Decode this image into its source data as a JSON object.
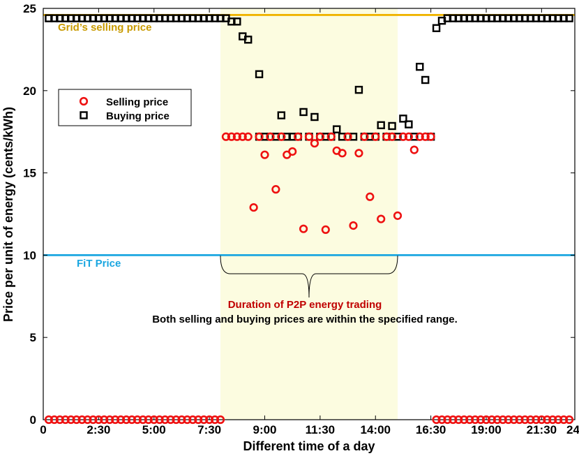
{
  "chart_data": {
    "type": "scatter",
    "xlabel": "Different time of a day",
    "ylabel": "Price per unit of energy (cents/kWh)",
    "xlim": [
      0,
      24
    ],
    "ylim": [
      0,
      25
    ],
    "x_ticks": [
      0,
      2.5,
      5,
      7.5,
      10,
      12.5,
      15,
      17.5,
      20,
      22.5,
      25
    ],
    "x_tick_labels": [
      "0",
      "2:30",
      "5:00",
      "7:30",
      "9:00",
      "11:30",
      "14:00",
      "16:30",
      "19:00",
      "21:30",
      "24:00"
    ],
    "y_ticks": [
      0,
      5,
      10,
      15,
      20,
      25
    ],
    "y_tick_labels": [
      "0",
      "5",
      "10",
      "15",
      "20",
      "25"
    ],
    "grid": false,
    "legend": {
      "position": "upper-left",
      "entries": [
        {
          "label": "Selling price",
          "marker": "circle",
          "color": "#ee1111"
        },
        {
          "label": "Buying price",
          "marker": "square",
          "color": "#000000"
        }
      ]
    },
    "reference_lines": [
      {
        "name": "Grid's selling price",
        "y": 24.6,
        "color": "#f0b400"
      },
      {
        "name": "FiT Price",
        "y": 10,
        "color": "#1aa6e0"
      }
    ],
    "shaded_region": {
      "x_start": 8,
      "x_end": 16,
      "color": "#fcfce0",
      "label": "Duration of P2P energy trading"
    },
    "annotations": {
      "duration_label": "Duration of P2P energy trading",
      "range_note": "Both selling and buying prices are within the specified range.",
      "grid_price_label": "Grid’s selling price",
      "fit_price_label": "FiT Price"
    },
    "colors": {
      "selling": "#ee1111",
      "buying": "#000000",
      "grid_line": "#f0b400",
      "fit_line": "#1aa6e0",
      "duration_text": "#c00000"
    },
    "series": [
      {
        "name": "Selling price",
        "marker": "circle",
        "points": [
          [
            0.25,
            0
          ],
          [
            0.5,
            0
          ],
          [
            0.75,
            0
          ],
          [
            1,
            0
          ],
          [
            1.25,
            0
          ],
          [
            1.5,
            0
          ],
          [
            1.75,
            0
          ],
          [
            2,
            0
          ],
          [
            2.25,
            0
          ],
          [
            2.5,
            0
          ],
          [
            2.75,
            0
          ],
          [
            3,
            0
          ],
          [
            3.25,
            0
          ],
          [
            3.5,
            0
          ],
          [
            3.75,
            0
          ],
          [
            4,
            0
          ],
          [
            4.25,
            0
          ],
          [
            4.5,
            0
          ],
          [
            4.75,
            0
          ],
          [
            5,
            0
          ],
          [
            5.25,
            0
          ],
          [
            5.5,
            0
          ],
          [
            5.75,
            0
          ],
          [
            6,
            0
          ],
          [
            6.25,
            0
          ],
          [
            6.5,
            0
          ],
          [
            6.75,
            0
          ],
          [
            7,
            0
          ],
          [
            7.25,
            0
          ],
          [
            7.5,
            0
          ],
          [
            7.75,
            0
          ],
          [
            8,
            0
          ],
          [
            8.25,
            17.2
          ],
          [
            8.5,
            17.2
          ],
          [
            8.75,
            17.2
          ],
          [
            9,
            17.2
          ],
          [
            9.25,
            17.2
          ],
          [
            9.5,
            12.9
          ],
          [
            9.75,
            17.2
          ],
          [
            10,
            16.1
          ],
          [
            10.25,
            17.2
          ],
          [
            10.5,
            14
          ],
          [
            10.75,
            17.2
          ],
          [
            11,
            16.1
          ],
          [
            11.25,
            16.3
          ],
          [
            11.5,
            17.2
          ],
          [
            11.75,
            11.6
          ],
          [
            12,
            17.2
          ],
          [
            12.25,
            16.8
          ],
          [
            12.5,
            17.2
          ],
          [
            12.75,
            11.55
          ],
          [
            13,
            17.2
          ],
          [
            13.25,
            16.35
          ],
          [
            13.5,
            16.2
          ],
          [
            13.75,
            17.2
          ],
          [
            14,
            11.8
          ],
          [
            14.25,
            16.2
          ],
          [
            14.5,
            17.2
          ],
          [
            14.75,
            13.55
          ],
          [
            15,
            17.2
          ],
          [
            15.25,
            12.2
          ],
          [
            15.5,
            17.2
          ],
          [
            15.75,
            17.2
          ],
          [
            16,
            12.4
          ],
          [
            16.25,
            17.2
          ],
          [
            16.5,
            17.2
          ],
          [
            16.75,
            16.4
          ],
          [
            17,
            17.2
          ],
          [
            17.25,
            17.2
          ],
          [
            17.5,
            17.2
          ],
          [
            17.75,
            0
          ],
          [
            18,
            0
          ],
          [
            18.25,
            0
          ],
          [
            18.5,
            0
          ],
          [
            18.75,
            0
          ],
          [
            19,
            0
          ],
          [
            19.25,
            0
          ],
          [
            19.5,
            0
          ],
          [
            19.75,
            0
          ],
          [
            20,
            0
          ],
          [
            20.25,
            0
          ],
          [
            20.5,
            0
          ],
          [
            20.75,
            0
          ],
          [
            21,
            0
          ],
          [
            21.25,
            0
          ],
          [
            21.5,
            0
          ],
          [
            21.75,
            0
          ],
          [
            22,
            0
          ],
          [
            22.25,
            0
          ],
          [
            22.5,
            0
          ],
          [
            22.75,
            0
          ],
          [
            23,
            0
          ],
          [
            23.25,
            0
          ],
          [
            23.5,
            0
          ],
          [
            23.75,
            0
          ]
        ]
      },
      {
        "name": "Buying price",
        "marker": "square",
        "points": [
          [
            0.25,
            24.4
          ],
          [
            0.5,
            24.4
          ],
          [
            0.75,
            24.4
          ],
          [
            1,
            24.4
          ],
          [
            1.25,
            24.4
          ],
          [
            1.5,
            24.4
          ],
          [
            1.75,
            24.4
          ],
          [
            2,
            24.4
          ],
          [
            2.25,
            24.4
          ],
          [
            2.5,
            24.4
          ],
          [
            2.75,
            24.4
          ],
          [
            3,
            24.4
          ],
          [
            3.25,
            24.4
          ],
          [
            3.5,
            24.4
          ],
          [
            3.75,
            24.4
          ],
          [
            4,
            24.4
          ],
          [
            4.25,
            24.4
          ],
          [
            4.5,
            24.4
          ],
          [
            4.75,
            24.4
          ],
          [
            5,
            24.4
          ],
          [
            5.25,
            24.4
          ],
          [
            5.5,
            24.4
          ],
          [
            5.75,
            24.4
          ],
          [
            6,
            24.4
          ],
          [
            6.25,
            24.4
          ],
          [
            6.5,
            24.4
          ],
          [
            6.75,
            24.4
          ],
          [
            7,
            24.4
          ],
          [
            7.25,
            24.4
          ],
          [
            7.5,
            24.4
          ],
          [
            7.75,
            24.4
          ],
          [
            8,
            24.4
          ],
          [
            8.25,
            24.4
          ],
          [
            8.5,
            24.2
          ],
          [
            8.75,
            24.2
          ],
          [
            9,
            23.3
          ],
          [
            9.25,
            23.1
          ],
          [
            9.75,
            21
          ],
          [
            9.75,
            17.2
          ],
          [
            10,
            17.2
          ],
          [
            10.25,
            17.2
          ],
          [
            10.5,
            17.2
          ],
          [
            10.75,
            18.5
          ],
          [
            11,
            17.2
          ],
          [
            11.25,
            17.2
          ],
          [
            11.5,
            17.2
          ],
          [
            11.75,
            18.7
          ],
          [
            12,
            17.2
          ],
          [
            12.25,
            18.4
          ],
          [
            12.5,
            17.2
          ],
          [
            12.75,
            17.2
          ],
          [
            13,
            17.2
          ],
          [
            13.25,
            17.65
          ],
          [
            13.5,
            17.2
          ],
          [
            13.75,
            17.2
          ],
          [
            14,
            17.2
          ],
          [
            14.25,
            20.05
          ],
          [
            14.5,
            17.2
          ],
          [
            14.75,
            17.2
          ],
          [
            15,
            17.2
          ],
          [
            15.25,
            17.9
          ],
          [
            15.5,
            17.2
          ],
          [
            15.75,
            17.85
          ],
          [
            16,
            17.2
          ],
          [
            16.25,
            18.3
          ],
          [
            16.5,
            17.95
          ],
          [
            16.75,
            17.2
          ],
          [
            17,
            21.45
          ],
          [
            17.25,
            20.65
          ],
          [
            17.5,
            17.2
          ],
          [
            17.75,
            23.8
          ],
          [
            18,
            24.25
          ],
          [
            18.25,
            24.4
          ],
          [
            18.5,
            24.4
          ],
          [
            18.75,
            24.4
          ],
          [
            19,
            24.4
          ],
          [
            19.25,
            24.4
          ],
          [
            19.5,
            24.4
          ],
          [
            19.75,
            24.4
          ],
          [
            20,
            24.4
          ],
          [
            20.25,
            24.4
          ],
          [
            20.5,
            24.4
          ],
          [
            20.75,
            24.4
          ],
          [
            21,
            24.4
          ],
          [
            21.25,
            24.4
          ],
          [
            21.5,
            24.4
          ],
          [
            21.75,
            24.4
          ],
          [
            22,
            24.4
          ],
          [
            22.25,
            24.4
          ],
          [
            22.5,
            24.4
          ],
          [
            22.75,
            24.4
          ],
          [
            23,
            24.4
          ],
          [
            23.25,
            24.4
          ],
          [
            23.5,
            24.4
          ],
          [
            23.75,
            24.4
          ]
        ]
      }
    ]
  }
}
